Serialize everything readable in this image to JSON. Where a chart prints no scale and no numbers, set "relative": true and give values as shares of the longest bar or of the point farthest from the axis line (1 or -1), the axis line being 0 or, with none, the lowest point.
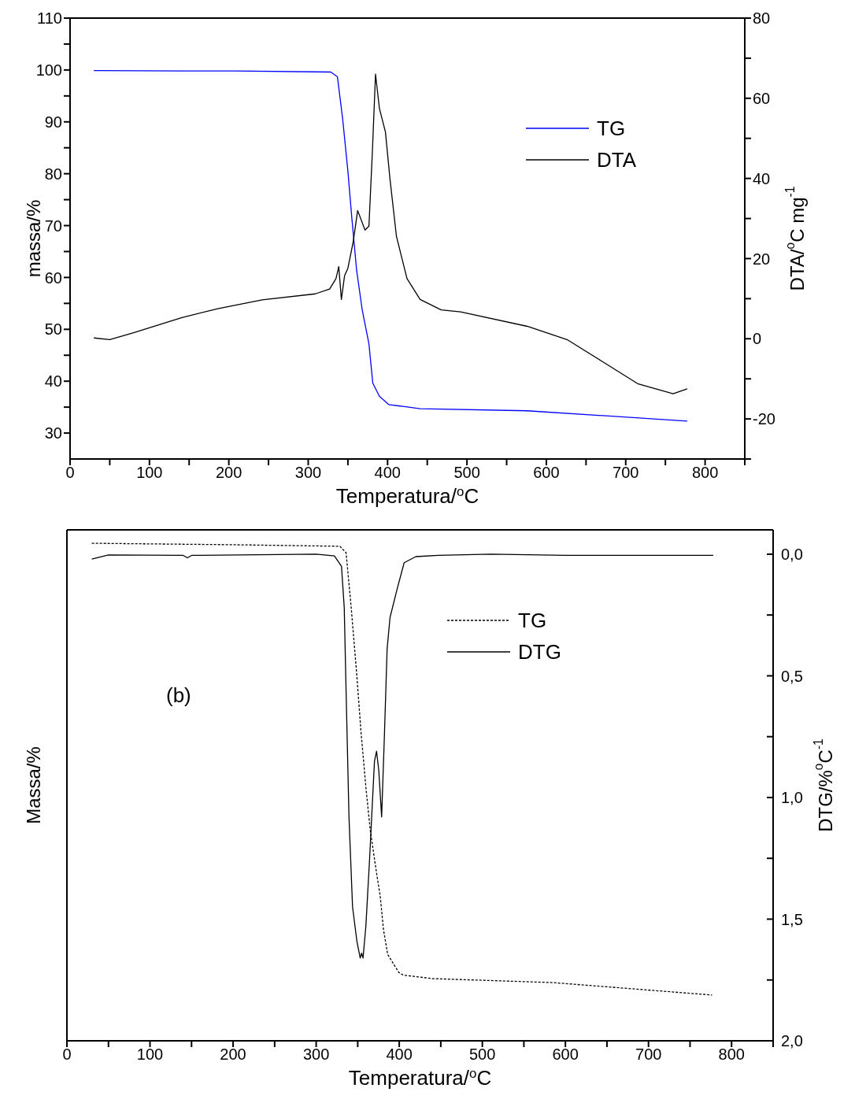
{
  "chart_data": [
    {
      "type": "line",
      "xlabel": "Temperatura/$^{o}$C",
      "ylabel": "massa/%",
      "y2label": "DTA/$^{o}$C mg$^{-1}$",
      "xlim": [
        0,
        850
      ],
      "xticks": [
        0,
        {
          "value": 50,
          "label": null
        },
        100,
        {
          "value": 150,
          "label": null
        },
        200,
        {
          "value": 250,
          "label": null
        },
        300,
        {
          "value": 350,
          "label": null
        },
        400,
        {
          "value": 450,
          "label": null
        },
        500,
        {
          "value": 550,
          "label": null
        },
        600,
        {
          "value": 650,
          "label": null
        },
        700,
        {
          "value": 750,
          "label": null
        },
        800,
        {
          "value": 850,
          "label": null
        }
      ],
      "ylim": [
        25,
        110
      ],
      "yticks": [
        30,
        {
          "value": 35,
          "label": null
        },
        40,
        {
          "value": 45,
          "label": null
        },
        50,
        {
          "value": 55,
          "label": null
        },
        60,
        {
          "value": 65,
          "label": null
        },
        70,
        {
          "value": 75,
          "label": null
        },
        80,
        {
          "value": 85,
          "label": null
        },
        90,
        {
          "value": 95,
          "label": null
        },
        100,
        {
          "value": 105,
          "label": null
        },
        110
      ],
      "y2lim": [
        -30,
        80
      ],
      "y2ticks": [
        {
          "value": -30,
          "label": null
        },
        -20,
        {
          "value": -10,
          "label": null
        },
        0,
        {
          "value": 10,
          "label": null
        },
        20,
        {
          "value": 30,
          "label": null
        },
        40,
        {
          "value": 50,
          "label": null
        },
        60,
        {
          "value": 70,
          "label": null
        },
        80
      ],
      "legend": "right",
      "series": [
        {
          "name": "TG",
          "color": "#0000ff",
          "axis": "y",
          "x": [
            30,
            141,
            209,
            328.5,
            336.8,
            343.4,
            350,
            355,
            361,
            368,
            376.5,
            381.4,
            389.7,
            401.3,
            441,
            575.7,
            777.5
          ],
          "values": [
            99.9,
            99.8,
            99.8,
            99.6,
            98.7,
            90.6,
            80.5,
            71.4,
            61.4,
            53.8,
            47.2,
            39.6,
            37.1,
            35.5,
            34.7,
            34.3,
            32.3
          ]
        },
        {
          "name": "DTA",
          "color": "#000000",
          "axis": "y2",
          "x": [
            30,
            50,
            80,
            141,
            186,
            242,
            309,
            327,
            335,
            338.5,
            341.8,
            345.8,
            350,
            356.7,
            362.3,
            371.6,
            376.5,
            380.8,
            384.8,
            389.7,
            397.3,
            403,
            411.2,
            424.5,
            441,
            467.5,
            492,
            576,
            626,
            670.6,
            715,
            759.7,
            777.5
          ],
          "values": [
            0.2,
            -0.2,
            1.5,
            5.3,
            7.5,
            9.7,
            11.2,
            12.4,
            15.0,
            18.0,
            9.8,
            15.7,
            17.6,
            24.2,
            32.0,
            27.1,
            28.1,
            46.4,
            66.0,
            57.5,
            51.6,
            39.9,
            25.5,
            15.0,
            9.8,
            7.2,
            6.7,
            3.1,
            -0.2,
            -5.7,
            -11.2,
            -13.7,
            -12.5
          ]
        }
      ]
    },
    {
      "type": "line",
      "relative": true,
      "xlabel": "Temperatura/$^{o}$C",
      "ylabel": "Massa/%",
      "xlim": [
        0,
        850
      ],
      "xticks": [
        0,
        {
          "value": 50,
          "label": null
        },
        100,
        {
          "value": 150,
          "label": null
        },
        200,
        {
          "value": 250,
          "label": null
        },
        300,
        {
          "value": 350,
          "label": null
        },
        400,
        {
          "value": 450,
          "label": null
        },
        500,
        {
          "value": 550,
          "label": null
        },
        600,
        {
          "value": 650,
          "label": null
        },
        700,
        {
          "value": 750,
          "label": null
        },
        800,
        {
          "value": 850,
          "label": null
        }
      ],
      "legend": "top right",
      "annotations": [
        "(b)"
      ],
      "series": [
        {
          "name": "TG",
          "color": "#000000",
          "line_style": "dashed",
          "x": [
            30,
            203.6,
            328.6,
            336,
            342,
            349,
            354,
            360,
            365.2,
            372.7,
            377,
            381,
            386,
            399.6,
            405,
            440,
            585,
            776.5
          ],
          "values": [
            1.0,
            0.997,
            0.994,
            0.981,
            0.874,
            0.733,
            0.62,
            0.507,
            0.422,
            0.337,
            0.292,
            0.224,
            0.174,
            0.137,
            0.132,
            0.125,
            0.117,
            0.092
          ]
        }
      ]
    },
    {
      "type": "line",
      "ylabel": "DTG/%$^{o}$C$^{-1}$",
      "tick_labels": "y",
      "xlim": [
        0,
        850
      ],
      "xticks": [
        0,
        {
          "value": 50,
          "label": null
        },
        100,
        {
          "value": 150,
          "label": null
        },
        200,
        {
          "value": 250,
          "label": null
        },
        300,
        {
          "value": 350,
          "label": null
        },
        400,
        {
          "value": 450,
          "label": null
        },
        500,
        {
          "value": 550,
          "label": null
        },
        600,
        {
          "value": 650,
          "label": null
        },
        700,
        {
          "value": 750,
          "label": null
        },
        800,
        {
          "value": 850,
          "label": null
        }
      ],
      "ylim": [
        2.0,
        -0.1
      ],
      "yticks": [
        {
          "value": 0,
          "label": "0,0"
        },
        {
          "value": 0.25,
          "label": null
        },
        {
          "value": 0.5,
          "label": "0,5"
        },
        {
          "value": 0.75,
          "label": null
        },
        {
          "value": 1.0,
          "label": "1,0"
        },
        {
          "value": 1.25,
          "label": null
        },
        {
          "value": 1.5,
          "label": "1,5"
        },
        {
          "value": 1.75,
          "label": null
        },
        {
          "value": 2.0,
          "label": "2,0"
        }
      ],
      "legend": "top right",
      "series": [
        {
          "name": "DTG",
          "color": "#000000",
          "line_style": "solid",
          "x": [
            30,
            50,
            140,
            145,
            150,
            300,
            322,
            330.5,
            333.8,
            336,
            339.5,
            343.8,
            349,
            353,
            354.7,
            356.4,
            359.8,
            364.2,
            367.4,
            370.2,
            372.7,
            375.4,
            378.8,
            382.2,
            385.4,
            388.9,
            397.7,
            405.9,
            420,
            447,
            510,
            600,
            700,
            778
          ],
          "values": [
            0.02,
            0.003,
            0.005,
            0.015,
            0.005,
            0.0,
            0.007,
            0.05,
            0.22,
            0.56,
            1.08,
            1.45,
            1.59,
            1.66,
            1.64,
            1.66,
            1.53,
            1.26,
            1.04,
            0.85,
            0.81,
            0.89,
            1.08,
            0.74,
            0.39,
            0.26,
            0.14,
            0.035,
            0.01,
            0.005,
            0.0,
            0.005,
            0.005,
            0.005
          ]
        }
      ]
    }
  ]
}
